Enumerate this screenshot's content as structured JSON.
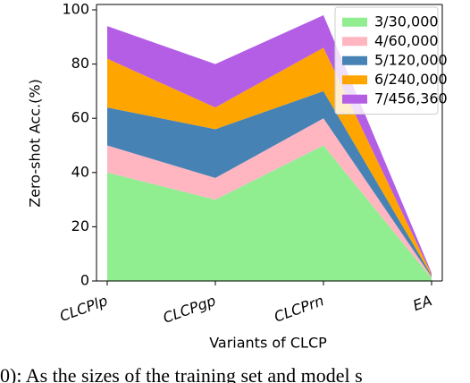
{
  "chart_data": {
    "type": "stacked-area",
    "xlabel": "Variants of CLCP",
    "ylabel": "Zero-shot Acc.(%)",
    "categories": [
      "CLCPlp",
      "CLCPgp",
      "CLCPrn",
      "EA"
    ],
    "series": [
      {
        "name": "3/30,000",
        "color": "#90ee90",
        "values": [
          40,
          30,
          50,
          1
        ]
      },
      {
        "name": "4/60,000",
        "color": "#ffb6c1",
        "values": [
          10,
          8,
          10,
          0.5
        ]
      },
      {
        "name": "5/120,000",
        "color": "#4682b4",
        "values": [
          14,
          18,
          10,
          0.5
        ]
      },
      {
        "name": "6/240,000",
        "color": "#ffa500",
        "values": [
          18,
          8,
          16,
          0.5
        ]
      },
      {
        "name": "7/456,360",
        "color": "#b45ee6",
        "values": [
          12,
          16,
          12,
          0.5
        ]
      }
    ],
    "ylim": [
      0,
      100
    ],
    "yticks": [
      0,
      20,
      40,
      60,
      80,
      100
    ],
    "legend": "upper-right",
    "caption": "0): As the sizes of the training set and model s"
  }
}
